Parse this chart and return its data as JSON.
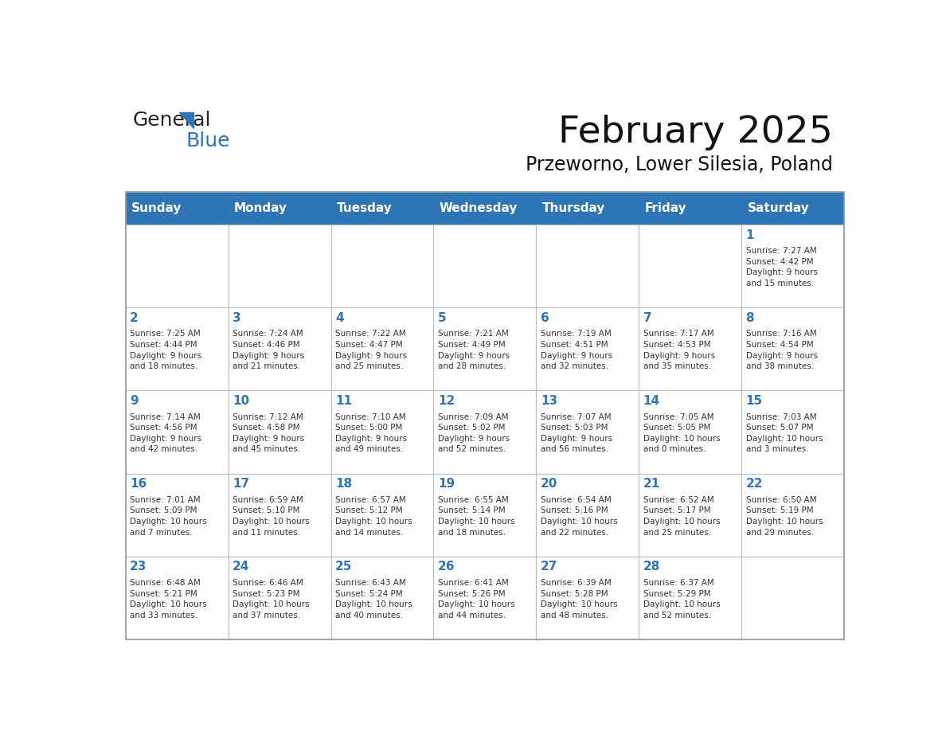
{
  "title": "February 2025",
  "subtitle": "Przeworno, Lower Silesia, Poland",
  "header_color": "#2E75B6",
  "header_text_color": "#FFFFFF",
  "cell_bg_color": "#FFFFFF",
  "cell_border_color": "#CCCCCC",
  "day_number_color": "#2E75B6",
  "text_color": "#333333",
  "days_of_week": [
    "Sunday",
    "Monday",
    "Tuesday",
    "Wednesday",
    "Thursday",
    "Friday",
    "Saturday"
  ],
  "weeks": [
    [
      {
        "day": "",
        "info": ""
      },
      {
        "day": "",
        "info": ""
      },
      {
        "day": "",
        "info": ""
      },
      {
        "day": "",
        "info": ""
      },
      {
        "day": "",
        "info": ""
      },
      {
        "day": "",
        "info": ""
      },
      {
        "day": "1",
        "info": "Sunrise: 7:27 AM\nSunset: 4:42 PM\nDaylight: 9 hours\nand 15 minutes."
      }
    ],
    [
      {
        "day": "2",
        "info": "Sunrise: 7:25 AM\nSunset: 4:44 PM\nDaylight: 9 hours\nand 18 minutes."
      },
      {
        "day": "3",
        "info": "Sunrise: 7:24 AM\nSunset: 4:46 PM\nDaylight: 9 hours\nand 21 minutes."
      },
      {
        "day": "4",
        "info": "Sunrise: 7:22 AM\nSunset: 4:47 PM\nDaylight: 9 hours\nand 25 minutes."
      },
      {
        "day": "5",
        "info": "Sunrise: 7:21 AM\nSunset: 4:49 PM\nDaylight: 9 hours\nand 28 minutes."
      },
      {
        "day": "6",
        "info": "Sunrise: 7:19 AM\nSunset: 4:51 PM\nDaylight: 9 hours\nand 32 minutes."
      },
      {
        "day": "7",
        "info": "Sunrise: 7:17 AM\nSunset: 4:53 PM\nDaylight: 9 hours\nand 35 minutes."
      },
      {
        "day": "8",
        "info": "Sunrise: 7:16 AM\nSunset: 4:54 PM\nDaylight: 9 hours\nand 38 minutes."
      }
    ],
    [
      {
        "day": "9",
        "info": "Sunrise: 7:14 AM\nSunset: 4:56 PM\nDaylight: 9 hours\nand 42 minutes."
      },
      {
        "day": "10",
        "info": "Sunrise: 7:12 AM\nSunset: 4:58 PM\nDaylight: 9 hours\nand 45 minutes."
      },
      {
        "day": "11",
        "info": "Sunrise: 7:10 AM\nSunset: 5:00 PM\nDaylight: 9 hours\nand 49 minutes."
      },
      {
        "day": "12",
        "info": "Sunrise: 7:09 AM\nSunset: 5:02 PM\nDaylight: 9 hours\nand 52 minutes."
      },
      {
        "day": "13",
        "info": "Sunrise: 7:07 AM\nSunset: 5:03 PM\nDaylight: 9 hours\nand 56 minutes."
      },
      {
        "day": "14",
        "info": "Sunrise: 7:05 AM\nSunset: 5:05 PM\nDaylight: 10 hours\nand 0 minutes."
      },
      {
        "day": "15",
        "info": "Sunrise: 7:03 AM\nSunset: 5:07 PM\nDaylight: 10 hours\nand 3 minutes."
      }
    ],
    [
      {
        "day": "16",
        "info": "Sunrise: 7:01 AM\nSunset: 5:09 PM\nDaylight: 10 hours\nand 7 minutes."
      },
      {
        "day": "17",
        "info": "Sunrise: 6:59 AM\nSunset: 5:10 PM\nDaylight: 10 hours\nand 11 minutes."
      },
      {
        "day": "18",
        "info": "Sunrise: 6:57 AM\nSunset: 5:12 PM\nDaylight: 10 hours\nand 14 minutes."
      },
      {
        "day": "19",
        "info": "Sunrise: 6:55 AM\nSunset: 5:14 PM\nDaylight: 10 hours\nand 18 minutes."
      },
      {
        "day": "20",
        "info": "Sunrise: 6:54 AM\nSunset: 5:16 PM\nDaylight: 10 hours\nand 22 minutes."
      },
      {
        "day": "21",
        "info": "Sunrise: 6:52 AM\nSunset: 5:17 PM\nDaylight: 10 hours\nand 25 minutes."
      },
      {
        "day": "22",
        "info": "Sunrise: 6:50 AM\nSunset: 5:19 PM\nDaylight: 10 hours\nand 29 minutes."
      }
    ],
    [
      {
        "day": "23",
        "info": "Sunrise: 6:48 AM\nSunset: 5:21 PM\nDaylight: 10 hours\nand 33 minutes."
      },
      {
        "day": "24",
        "info": "Sunrise: 6:46 AM\nSunset: 5:23 PM\nDaylight: 10 hours\nand 37 minutes."
      },
      {
        "day": "25",
        "info": "Sunrise: 6:43 AM\nSunset: 5:24 PM\nDaylight: 10 hours\nand 40 minutes."
      },
      {
        "day": "26",
        "info": "Sunrise: 6:41 AM\nSunset: 5:26 PM\nDaylight: 10 hours\nand 44 minutes."
      },
      {
        "day": "27",
        "info": "Sunrise: 6:39 AM\nSunset: 5:28 PM\nDaylight: 10 hours\nand 48 minutes."
      },
      {
        "day": "28",
        "info": "Sunrise: 6:37 AM\nSunset: 5:29 PM\nDaylight: 10 hours\nand 52 minutes."
      },
      {
        "day": "",
        "info": ""
      }
    ]
  ],
  "logo_text1": "General",
  "logo_text2": "Blue",
  "logo_color1": "#222222",
  "logo_color2": "#2E75B6",
  "logo_triangle_color": "#2E75B6"
}
